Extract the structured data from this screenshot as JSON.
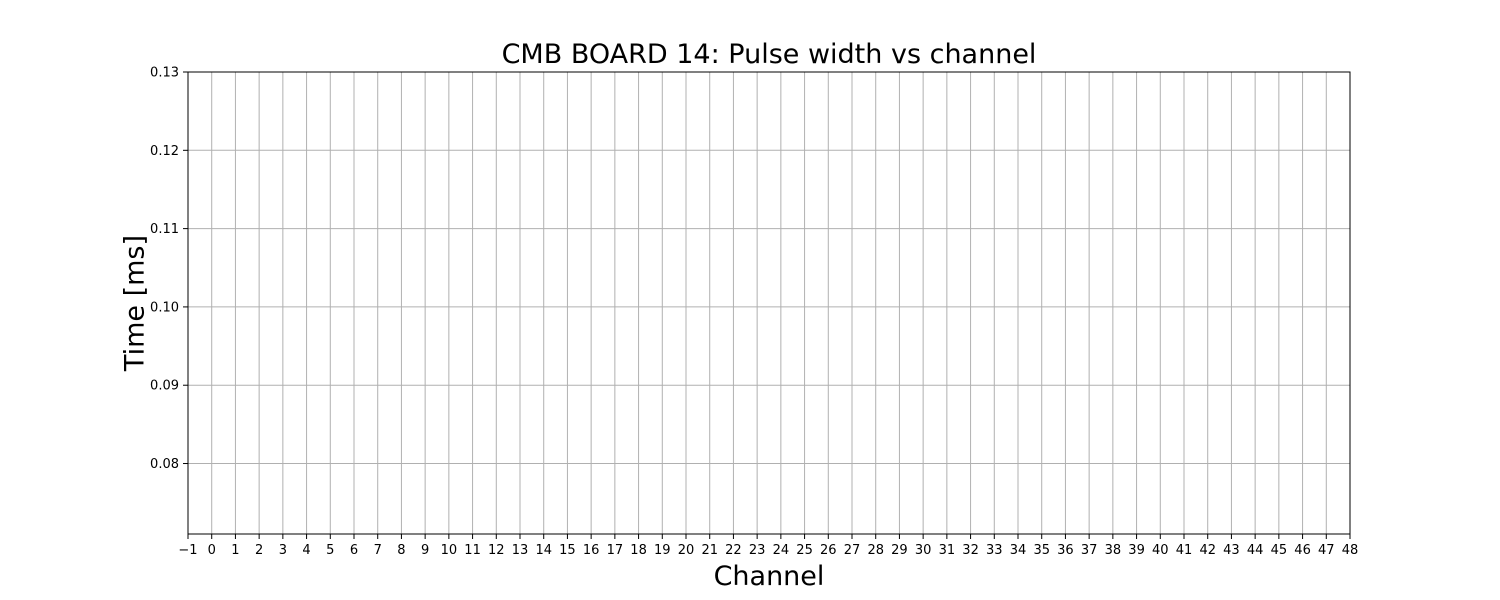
{
  "chart_data": {
    "type": "scatter",
    "title": "CMB BOARD 14: Pulse width vs channel",
    "xlabel": "Channel",
    "ylabel": "Time [ms]",
    "xlim": [
      -1,
      48
    ],
    "ylim": [
      0.071,
      0.13
    ],
    "xticks": [
      -1,
      0,
      1,
      2,
      3,
      4,
      5,
      6,
      7,
      8,
      9,
      10,
      11,
      12,
      13,
      14,
      15,
      16,
      17,
      18,
      19,
      20,
      21,
      22,
      23,
      24,
      25,
      26,
      27,
      28,
      29,
      30,
      31,
      32,
      33,
      34,
      35,
      36,
      37,
      38,
      39,
      40,
      41,
      42,
      43,
      44,
      45,
      46,
      47,
      48
    ],
    "xtick_labels": [
      "−1",
      "0",
      "1",
      "2",
      "3",
      "4",
      "5",
      "6",
      "7",
      "8",
      "9",
      "10",
      "11",
      "12",
      "13",
      "14",
      "15",
      "16",
      "17",
      "18",
      "19",
      "20",
      "21",
      "22",
      "23",
      "24",
      "25",
      "26",
      "27",
      "28",
      "29",
      "30",
      "31",
      "32",
      "33",
      "34",
      "35",
      "36",
      "37",
      "38",
      "39",
      "40",
      "41",
      "42",
      "43",
      "44",
      "45",
      "46",
      "47",
      "48"
    ],
    "yticks": [
      0.08,
      0.09,
      0.1,
      0.11,
      0.12,
      0.13
    ],
    "ytick_labels": [
      "0.08",
      "0.09",
      "0.10",
      "0.11",
      "0.12",
      "0.13"
    ],
    "grid": true,
    "series": [],
    "colors": {
      "grid": "#b0b0b0",
      "axes": "#000000",
      "background": "#ffffff"
    }
  }
}
